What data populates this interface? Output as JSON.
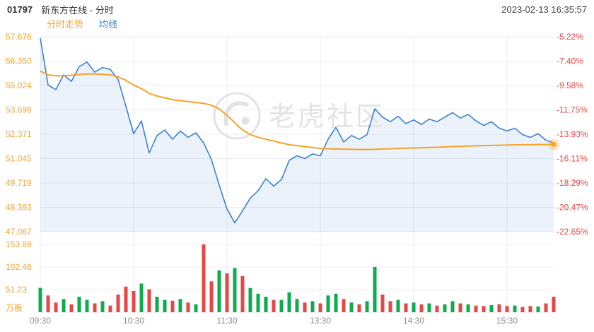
{
  "header": {
    "code": "01797",
    "name": "新东方在线 - 分时",
    "timestamp": "2023-02-13 16:35:57"
  },
  "tabs": [
    {
      "label": "分时走势",
      "active": true
    },
    {
      "label": "均线",
      "active": false
    }
  ],
  "watermark": "老虎社区",
  "volume_unit": "万股",
  "colors": {
    "price_line": "#3b82d4",
    "price_fill": "rgba(59,130,212,0.10)",
    "avg_line": "#f7a326",
    "left_axis": "#f0a331",
    "right_axis": "#e64747",
    "up": "#0fab50",
    "down": "#e64747",
    "grid": "#ececec",
    "x_label": "#8f8f8f",
    "watermark": "#e3e3e3"
  },
  "chart_data": {
    "type": "line",
    "title": "01797 新东方在线 分时走势",
    "xlabel": "",
    "ylabel": "",
    "legend_position": "none",
    "grid": true,
    "y_axis_left": [
      "57.676",
      "56.350",
      "55.024",
      "53.698",
      "52.371",
      "51.045",
      "49.719",
      "48.393",
      "47.067"
    ],
    "y_axis_right": [
      "-5.22%",
      "-7.40%",
      "-9.58%",
      "-11.75%",
      "-13.93%",
      "-16.11%",
      "-18.29%",
      "-20.47%",
      "-22.65%"
    ],
    "price_range": [
      47.067,
      57.676
    ],
    "x_ticks": [
      "09:30",
      "10:30",
      "11:30",
      "13:30",
      "14:30",
      "15:30"
    ],
    "x_tick_indices": [
      0,
      12,
      24,
      36,
      48,
      60
    ],
    "volume_axis": [
      "153.69",
      "102.46",
      "51.23"
    ],
    "volume_max": 153.69,
    "series": [
      {
        "name": "price",
        "values": [
          57.6,
          55.05,
          54.8,
          55.6,
          55.25,
          56.05,
          56.3,
          55.75,
          56.0,
          55.9,
          55.35,
          53.9,
          52.4,
          53.1,
          51.35,
          52.3,
          52.6,
          52.1,
          52.55,
          52.2,
          52.45,
          51.9,
          51.0,
          49.6,
          48.3,
          47.55,
          48.2,
          48.9,
          49.3,
          49.95,
          49.55,
          49.9,
          50.95,
          51.2,
          51.05,
          51.3,
          51.2,
          52.1,
          52.75,
          51.95,
          52.3,
          52.1,
          52.35,
          53.75,
          53.3,
          53.05,
          53.35,
          52.95,
          53.15,
          52.9,
          53.2,
          53.05,
          53.3,
          53.55,
          53.25,
          53.45,
          53.1,
          52.85,
          53.05,
          52.7,
          52.55,
          52.7,
          52.35,
          52.2,
          52.4,
          52.05,
          51.9
        ]
      },
      {
        "name": "avg",
        "values": [
          55.8,
          55.6,
          55.55,
          55.55,
          55.58,
          55.62,
          55.65,
          55.65,
          55.63,
          55.6,
          55.5,
          55.3,
          55.05,
          54.85,
          54.6,
          54.45,
          54.35,
          54.25,
          54.2,
          54.15,
          54.1,
          54.05,
          53.95,
          53.75,
          53.4,
          53.0,
          52.6,
          52.35,
          52.2,
          52.1,
          52.0,
          51.9,
          51.8,
          51.75,
          51.7,
          51.65,
          51.6,
          51.58,
          51.57,
          51.56,
          51.55,
          51.54,
          51.54,
          51.55,
          51.57,
          51.58,
          51.6,
          51.61,
          51.62,
          51.63,
          51.65,
          51.66,
          51.68,
          51.7,
          51.71,
          51.73,
          51.74,
          51.75,
          51.76,
          51.77,
          51.78,
          51.79,
          51.8,
          51.8,
          51.81,
          51.81,
          51.82
        ]
      }
    ],
    "volume": [
      55,
      38,
      22,
      30,
      18,
      35,
      28,
      20,
      25,
      15,
      40,
      58,
      48,
      65,
      52,
      35,
      28,
      26,
      30,
      22,
      18,
      153.69,
      70,
      95,
      88,
      100,
      82,
      55,
      42,
      35,
      28,
      28,
      45,
      30,
      22,
      25,
      20,
      38,
      42,
      30,
      22,
      18,
      25,
      102.46,
      40,
      25,
      28,
      20,
      22,
      18,
      20,
      15,
      18,
      25,
      20,
      18,
      15,
      14,
      16,
      18,
      14,
      15,
      12,
      14,
      13,
      20,
      35
    ],
    "volume_dir": [
      "u",
      "d",
      "d",
      "u",
      "d",
      "u",
      "u",
      "d",
      "u",
      "d",
      "d",
      "d",
      "d",
      "u",
      "d",
      "u",
      "u",
      "d",
      "u",
      "d",
      "u",
      "d",
      "d",
      "u",
      "d",
      "u",
      "d",
      "u",
      "u",
      "u",
      "d",
      "u",
      "u",
      "u",
      "d",
      "u",
      "d",
      "u",
      "u",
      "d",
      "u",
      "d",
      "u",
      "u",
      "d",
      "d",
      "u",
      "d",
      "u",
      "d",
      "u",
      "d",
      "u",
      "u",
      "d",
      "u",
      "d",
      "d",
      "u",
      "d",
      "d",
      "u",
      "d",
      "d",
      "u",
      "d",
      "d"
    ]
  }
}
